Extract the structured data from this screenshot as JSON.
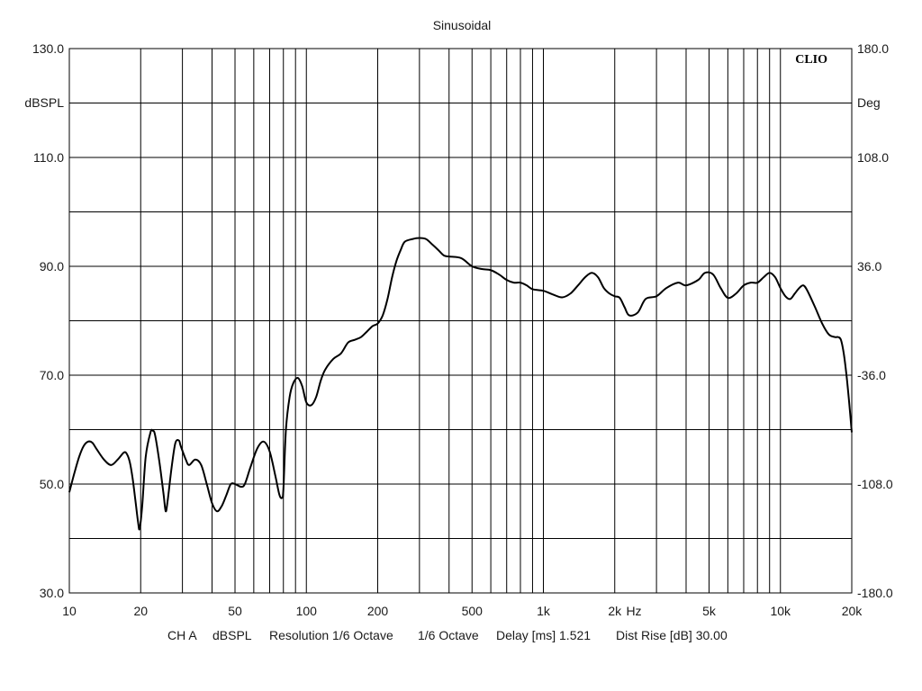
{
  "chart_data": {
    "type": "line",
    "title": "Sinusoidal",
    "brand": "CLIO",
    "xscale": "log",
    "xlim": [
      10,
      20000
    ],
    "ylim": [
      30,
      130
    ],
    "y2lim": [
      -180,
      180
    ],
    "ylabel": "dBSPL",
    "y2label": "Deg",
    "xunit": "Hz",
    "x_ticks": [
      {
        "value": 10,
        "label": "10"
      },
      {
        "value": 20,
        "label": "20"
      },
      {
        "value": 50,
        "label": "50"
      },
      {
        "value": 100,
        "label": "100"
      },
      {
        "value": 200,
        "label": "200"
      },
      {
        "value": 500,
        "label": "500"
      },
      {
        "value": 1000,
        "label": "1k"
      },
      {
        "value": 2000,
        "label": "2k"
      },
      {
        "value": 5000,
        "label": "5k"
      },
      {
        "value": 10000,
        "label": "10k"
      },
      {
        "value": 20000,
        "label": "20k"
      }
    ],
    "y_ticks": [
      {
        "value": 130,
        "label": "130.0"
      },
      {
        "value": 110,
        "label": "110.0"
      },
      {
        "value": 90,
        "label": "90.0"
      },
      {
        "value": 70,
        "label": "70.0"
      },
      {
        "value": 50,
        "label": "50.0"
      },
      {
        "value": 30,
        "label": "30.0"
      }
    ],
    "y2_ticks": [
      {
        "value": 180,
        "label": "180.0"
      },
      {
        "value": 108,
        "label": "108.0"
      },
      {
        "value": 36,
        "label": "36.0"
      },
      {
        "value": -36,
        "label": "-36.0"
      },
      {
        "value": -108,
        "label": "-108.0"
      },
      {
        "value": -180,
        "label": "-180.0"
      }
    ],
    "grid": true,
    "footer": {
      "channel": "CH A",
      "unit": "dBSPL",
      "resolution": "Resolution 1/6 Octave",
      "smoothing": "1/6 Octave",
      "delay": "Delay [ms] 1.521",
      "dist_rise": "Dist Rise [dB] 30.00"
    },
    "series": [
      {
        "color": "#000000",
        "x": [
          10,
          10.5,
          11,
          11.5,
          12,
          12.5,
          13,
          14,
          15,
          16,
          17,
          17.5,
          18,
          18.5,
          19,
          19.5,
          19.8,
          20.3,
          21,
          22,
          22.5,
          23,
          24,
          25,
          25.5,
          26,
          27,
          28,
          29,
          29.5,
          31,
          32,
          34,
          36,
          38,
          40,
          42,
          44,
          46,
          48,
          50,
          53,
          55,
          58,
          62,
          66,
          70,
          74,
          77,
          79,
          80,
          82,
          85,
          88,
          92,
          96,
          100,
          105,
          110,
          115,
          120,
          130,
          140,
          150,
          160,
          170,
          180,
          190,
          200,
          210,
          220,
          230,
          240,
          250,
          260,
          280,
          300,
          320,
          340,
          360,
          380,
          400,
          450,
          500,
          550,
          600,
          650,
          700,
          750,
          800,
          850,
          900,
          1000,
          1100,
          1200,
          1300,
          1400,
          1500,
          1600,
          1700,
          1800,
          1900,
          2000,
          2100,
          2200,
          2300,
          2500,
          2700,
          3000,
          3300,
          3700,
          4000,
          4500,
          4800,
          5200,
          5600,
          6000,
          6500,
          7000,
          7500,
          8000,
          8500,
          9000,
          9500,
          10000,
          10500,
          11000,
          11500,
          12000,
          12500,
          13000,
          14000,
          15000,
          16000,
          17000,
          17500,
          18000,
          18500,
          19000,
          19500,
          20000
        ],
        "y": [
          48.5,
          52,
          55,
          57,
          57.8,
          57.6,
          56.5,
          54.5,
          53.5,
          54.5,
          55.8,
          55.5,
          54,
          51,
          47,
          43,
          41.8,
          46,
          55,
          59.5,
          59.8,
          59,
          54,
          48,
          45,
          47,
          53,
          57.5,
          58,
          57,
          54.5,
          53.5,
          54.5,
          53.5,
          50,
          46.5,
          45,
          46,
          48,
          50,
          50,
          49.5,
          50,
          53,
          56.5,
          57.8,
          56,
          51.5,
          48,
          47.5,
          49,
          60,
          66,
          68.5,
          69.5,
          68,
          65,
          64.5,
          66,
          69,
          71,
          73,
          74,
          76,
          76.5,
          77,
          78,
          79,
          79.5,
          81,
          84,
          88,
          91,
          93,
          94.5,
          95,
          95.2,
          95,
          94,
          93,
          92,
          91.8,
          91.5,
          90,
          89.5,
          89.3,
          88.5,
          87.5,
          87,
          87,
          86.5,
          85.8,
          85.5,
          84.8,
          84.3,
          85,
          86.5,
          88,
          88.8,
          88,
          86,
          85,
          84.5,
          84.2,
          82.5,
          81,
          81.5,
          84,
          84.5,
          86,
          87,
          86.5,
          87.5,
          88.8,
          88.5,
          86,
          84.2,
          85,
          86.5,
          87,
          87,
          88,
          88.8,
          88,
          86,
          84.5,
          84,
          85,
          86,
          86.5,
          85.5,
          82.5,
          79.5,
          77.5,
          77,
          77,
          76.5,
          74,
          70,
          65,
          59.5
        ]
      }
    ]
  }
}
